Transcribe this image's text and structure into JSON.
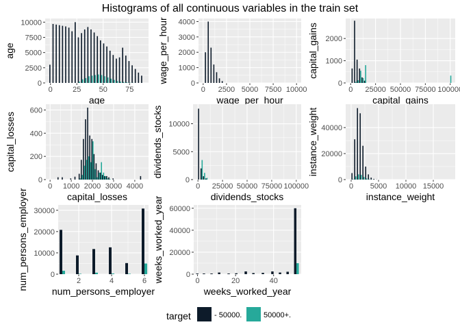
{
  "title": "Histograms of all continuous variables in the train set",
  "colors": {
    "neg": "#0d1b2a",
    "pos": "#26a99a",
    "panel": "#ebebeb",
    "grid": "#ffffff"
  },
  "legend": {
    "title": "target",
    "items": [
      {
        "label": "- 50000.",
        "color": "#0d1b2a"
      },
      {
        "label": "50000+.",
        "color": "#26a99a"
      }
    ]
  },
  "chart_data": [
    {
      "type": "bar",
      "id": "age",
      "xlabel": "age",
      "ylabel": "age",
      "xlim": [
        -5,
        93
      ],
      "ylim": [
        0,
        10600
      ],
      "xticks": [
        0,
        25,
        50,
        75
      ],
      "yticks": [
        0,
        2500,
        5000,
        7500,
        10000
      ],
      "yticklabels": [
        "0",
        "2500",
        "5000",
        "7500",
        "10000"
      ],
      "series": [
        {
          "name": "- 50000.",
          "x": [
            0,
            3,
            6,
            9,
            12,
            15,
            18,
            21,
            24,
            27,
            30,
            33,
            36,
            39,
            42,
            45,
            48,
            51,
            54,
            57,
            60,
            63,
            66,
            69,
            72,
            75,
            78,
            81,
            84,
            87
          ],
          "values": [
            3000,
            9700,
            9600,
            9500,
            9400,
            9300,
            9100,
            8500,
            10000,
            7500,
            8200,
            8800,
            9200,
            8800,
            8300,
            7700,
            7000,
            6500,
            6000,
            5300,
            4600,
            4000,
            4200,
            5800,
            4500,
            3600,
            2900,
            2300,
            1700,
            1200
          ]
        },
        {
          "name": "50000+.",
          "x": [
            0,
            3,
            6,
            9,
            12,
            15,
            18,
            21,
            24,
            27,
            30,
            33,
            36,
            39,
            42,
            45,
            48,
            51,
            54,
            57,
            60,
            63,
            66,
            69,
            72,
            75,
            78,
            81,
            84,
            87
          ],
          "values": [
            0,
            0,
            0,
            0,
            0,
            0,
            0,
            0,
            0,
            200,
            600,
            800,
            1100,
            1200,
            1300,
            1400,
            1300,
            1100,
            900,
            700,
            500,
            300,
            200,
            150,
            100,
            50,
            30,
            0,
            0,
            0
          ]
        }
      ]
    },
    {
      "type": "bar",
      "id": "wage",
      "xlabel": "wage_per_hour",
      "ylabel": "wage_per_hour",
      "xlim": [
        -500,
        10500
      ],
      "ylim": [
        0,
        4200
      ],
      "xticks": [
        0,
        2500,
        5000,
        7500,
        10000
      ],
      "yticks": [
        0,
        1000,
        2000,
        3000,
        4000
      ],
      "yticklabels": [
        "0",
        "1000",
        "2000",
        "3000",
        "4000"
      ],
      "series": [
        {
          "name": "- 50000.",
          "x": [
            300,
            600,
            900,
            1200,
            1500,
            1800,
            2100
          ],
          "values": [
            2000,
            4000,
            2300,
            1200,
            700,
            300,
            120
          ]
        },
        {
          "name": "50000+.",
          "x": [
            300,
            600,
            900,
            1200,
            1500,
            1800,
            2100
          ],
          "values": [
            0,
            0,
            0,
            0,
            0,
            0,
            0
          ]
        }
      ]
    },
    {
      "type": "bar",
      "id": "gains",
      "xlabel": "capital_gains",
      "ylabel": "capital_gains",
      "xlim": [
        -5000,
        105000
      ],
      "ylim": [
        0,
        2900
      ],
      "xticks": [
        0,
        25000,
        50000,
        75000,
        100000
      ],
      "yticks": [
        0,
        1000,
        2000
      ],
      "yticklabels": [
        "0",
        "1000",
        "2000"
      ],
      "series": [
        {
          "name": "- 50000.",
          "x": [
            2000,
            4500,
            7000,
            9500,
            12000,
            14500,
            100000
          ],
          "values": [
            650,
            2800,
            1050,
            650,
            250,
            100,
            0
          ]
        },
        {
          "name": "50000+.",
          "x": [
            2000,
            4500,
            7000,
            9500,
            12000,
            14500,
            100000
          ],
          "values": [
            0,
            50,
            120,
            550,
            220,
            800,
            330
          ]
        }
      ]
    },
    {
      "type": "bar",
      "id": "losses",
      "xlabel": "capital_losses",
      "ylabel": "capital_losses",
      "xlim": [
        -200,
        4650
      ],
      "ylim": [
        0,
        650
      ],
      "xticks": [
        0,
        1000,
        2000,
        3000,
        4000
      ],
      "yticks": [
        0,
        200,
        400,
        600
      ],
      "yticklabels": [
        "0",
        "200",
        "400",
        "600"
      ],
      "series": [
        {
          "name": "- 50000.",
          "x": [
            400,
            600,
            1000,
            1200,
            1400,
            1500,
            1600,
            1700,
            1800,
            1900,
            2000,
            2100,
            2200,
            2300,
            2400,
            2500,
            2600,
            2700,
            2800,
            3000,
            4300
          ],
          "values": [
            20,
            20,
            10,
            25,
            50,
            170,
            350,
            520,
            620,
            380,
            350,
            220,
            140,
            80,
            60,
            40,
            30,
            30,
            20,
            10,
            30
          ]
        },
        {
          "name": "50000+.",
          "x": [
            400,
            600,
            1000,
            1200,
            1400,
            1500,
            1600,
            1700,
            1800,
            1900,
            2000,
            2100,
            2200,
            2300,
            2400,
            2500,
            2600,
            2700,
            2800,
            3000,
            4300
          ],
          "values": [
            0,
            0,
            0,
            0,
            10,
            40,
            120,
            170,
            200,
            150,
            330,
            90,
            20,
            60,
            150,
            60,
            30,
            10,
            5,
            0,
            0
          ]
        }
      ]
    },
    {
      "type": "bar",
      "id": "dividends",
      "xlabel": "dividends_stocks",
      "ylabel": "dividends_stocks",
      "xlim": [
        -5000,
        105000
      ],
      "ylim": [
        0,
        13500
      ],
      "xticks": [
        0,
        25000,
        50000,
        75000,
        100000
      ],
      "yticks": [
        0,
        5000,
        10000
      ],
      "yticklabels": [
        "0",
        "5000",
        "10000"
      ],
      "series": [
        {
          "name": "- 50000.",
          "x": [
            1200,
            3700,
            6200,
            8700
          ],
          "values": [
            12700,
            2000,
            600,
            200
          ]
        },
        {
          "name": "50000+.",
          "x": [
            1200,
            3700,
            6200,
            8700
          ],
          "values": [
            0,
            3500,
            1200,
            300
          ]
        }
      ]
    },
    {
      "type": "bar",
      "id": "weight",
      "xlabel": "instance_weight",
      "ylabel": "instance_weight",
      "xlim": [
        -1000,
        19000
      ],
      "ylim": [
        0,
        58000
      ],
      "xticks": [
        0,
        5000,
        10000,
        15000
      ],
      "yticks": [
        0,
        20000,
        40000
      ],
      "yticklabels": [
        "0",
        "20000",
        "40000"
      ],
      "series": [
        {
          "name": "- 50000.",
          "x": [
            250,
            750,
            1250,
            1750,
            2250,
            2750,
            3250,
            3750,
            4250,
            4750
          ],
          "values": [
            5000,
            31000,
            55000,
            51000,
            26000,
            10000,
            4000,
            1500,
            500,
            100
          ]
        },
        {
          "name": "50000+.",
          "x": [
            250,
            750,
            1250,
            1750,
            2250,
            2750,
            3250,
            3750,
            4250,
            4750
          ],
          "values": [
            300,
            2500,
            4000,
            3600,
            2000,
            800,
            300,
            100,
            0,
            0
          ]
        }
      ]
    },
    {
      "type": "bar",
      "id": "persons",
      "xlabel": "num_persons_employer",
      "ylabel": "num_persons_employer",
      "xlim": [
        0.75,
        6.25
      ],
      "ylim": [
        0,
        32500
      ],
      "xticks": [
        2,
        4,
        6
      ],
      "yticks": [
        0,
        10000,
        20000,
        30000
      ],
      "yticklabels": [
        "0",
        "10000",
        "20000",
        "30000"
      ],
      "series": [
        {
          "name": "- 50000.",
          "x": [
            1,
            2,
            3,
            4,
            5,
            6
          ],
          "values": [
            20800,
            8800,
            11800,
            12600,
            5200,
            30800
          ]
        },
        {
          "name": "50000+.",
          "x": [
            1,
            2,
            3,
            4,
            5,
            6
          ],
          "values": [
            1600,
            200,
            700,
            300,
            200,
            5000
          ]
        }
      ]
    },
    {
      "type": "bar",
      "id": "weeks",
      "xlabel": "weeks_worked_year",
      "ylabel": "weeks_worked_year",
      "xlim": [
        -2,
        54.5
      ],
      "ylim": [
        0,
        63000
      ],
      "xticks": [
        0,
        20,
        40
      ],
      "yticks": [
        0,
        20000,
        40000,
        60000
      ],
      "yticklabels": [
        "0",
        "20000",
        "40000",
        "60000"
      ],
      "series": [
        {
          "name": "- 50000.",
          "x": [
            0.5,
            4,
            8,
            12,
            17,
            21,
            26,
            30,
            35,
            40,
            44,
            48,
            52
          ],
          "values": [
            600,
            600,
            600,
            1500,
            600,
            800,
            2500,
            1000,
            1200,
            2500,
            1500,
            2200,
            60000
          ]
        },
        {
          "name": "50000+.",
          "x": [
            0.5,
            4,
            8,
            12,
            17,
            21,
            26,
            30,
            35,
            40,
            44,
            48,
            52
          ],
          "values": [
            0,
            0,
            0,
            0,
            0,
            0,
            0,
            0,
            0,
            0,
            0,
            0,
            10000
          ]
        }
      ]
    }
  ]
}
